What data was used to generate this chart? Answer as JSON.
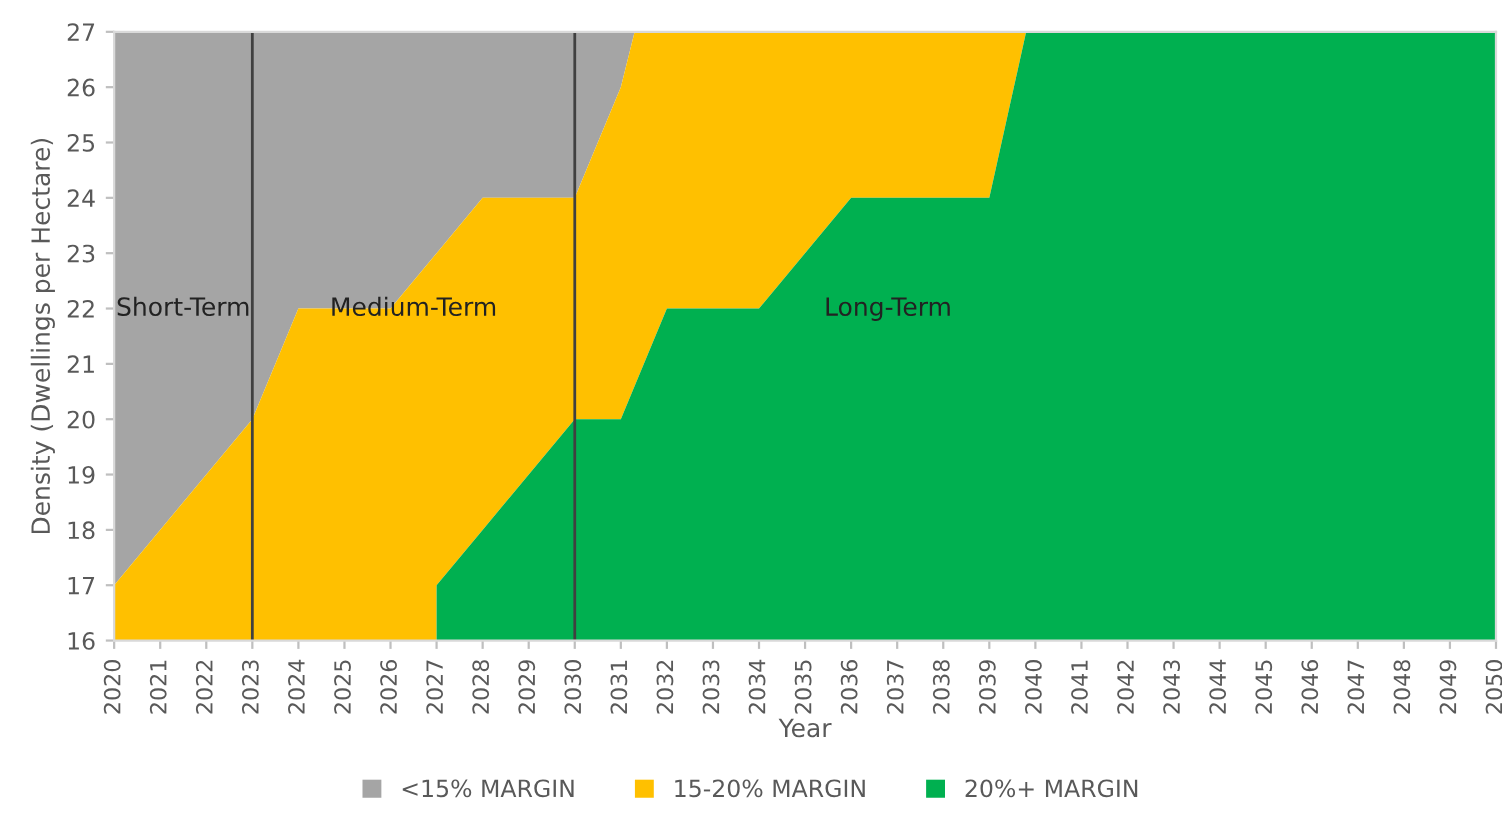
{
  "chart_data": {
    "type": "area",
    "xlabel": "Year",
    "ylabel": "Density (Dwellings per Hectare)",
    "x": [
      2020,
      2023,
      2024,
      2026,
      2027,
      2027,
      2028,
      2030,
      2031,
      2031.3,
      2032,
      2034,
      2036,
      2039,
      2039.8,
      2050
    ],
    "series": [
      {
        "name": "<15% MARGIN",
        "color": "#a5a5a5",
        "values": [
          27,
          27,
          27,
          27,
          27,
          27,
          27,
          27,
          27,
          27,
          27,
          27,
          27,
          27,
          27,
          27
        ]
      },
      {
        "name": "15-20% MARGIN",
        "color": "#ffc000",
        "values": [
          17,
          20,
          22,
          22,
          23,
          23,
          24,
          24,
          26,
          27,
          27,
          27,
          27,
          27,
          27,
          27
        ]
      },
      {
        "name": "20%+ MARGIN",
        "color": "#00b050",
        "x": [
          2027,
          2027,
          2028,
          2030,
          2031,
          2031.3,
          2032,
          2034,
          2036,
          2039,
          2039.8,
          2050
        ],
        "values": [
          16,
          17,
          18,
          20,
          20,
          20.6,
          22,
          22,
          24,
          24,
          27,
          27
        ]
      }
    ],
    "xlim": [
      2020,
      2050
    ],
    "xticks": [
      2020,
      2021,
      2022,
      2023,
      2024,
      2025,
      2026,
      2027,
      2028,
      2029,
      2030,
      2031,
      2032,
      2033,
      2034,
      2035,
      2036,
      2037,
      2038,
      2039,
      2040,
      2041,
      2042,
      2043,
      2044,
      2045,
      2046,
      2047,
      2048,
      2049,
      2050
    ],
    "ylim": [
      16,
      27
    ],
    "yticks": [
      16,
      17,
      18,
      19,
      20,
      21,
      22,
      23,
      24,
      25,
      26,
      27
    ],
    "ref_lines": [
      {
        "axis": "x",
        "value": 2023,
        "color": "#404040"
      },
      {
        "axis": "x",
        "value": 2030,
        "color": "#404040"
      }
    ],
    "annotations": [
      "Short-Term",
      "Medium-Term",
      "Long-Term"
    ],
    "grid": false,
    "legend": "bottom"
  }
}
